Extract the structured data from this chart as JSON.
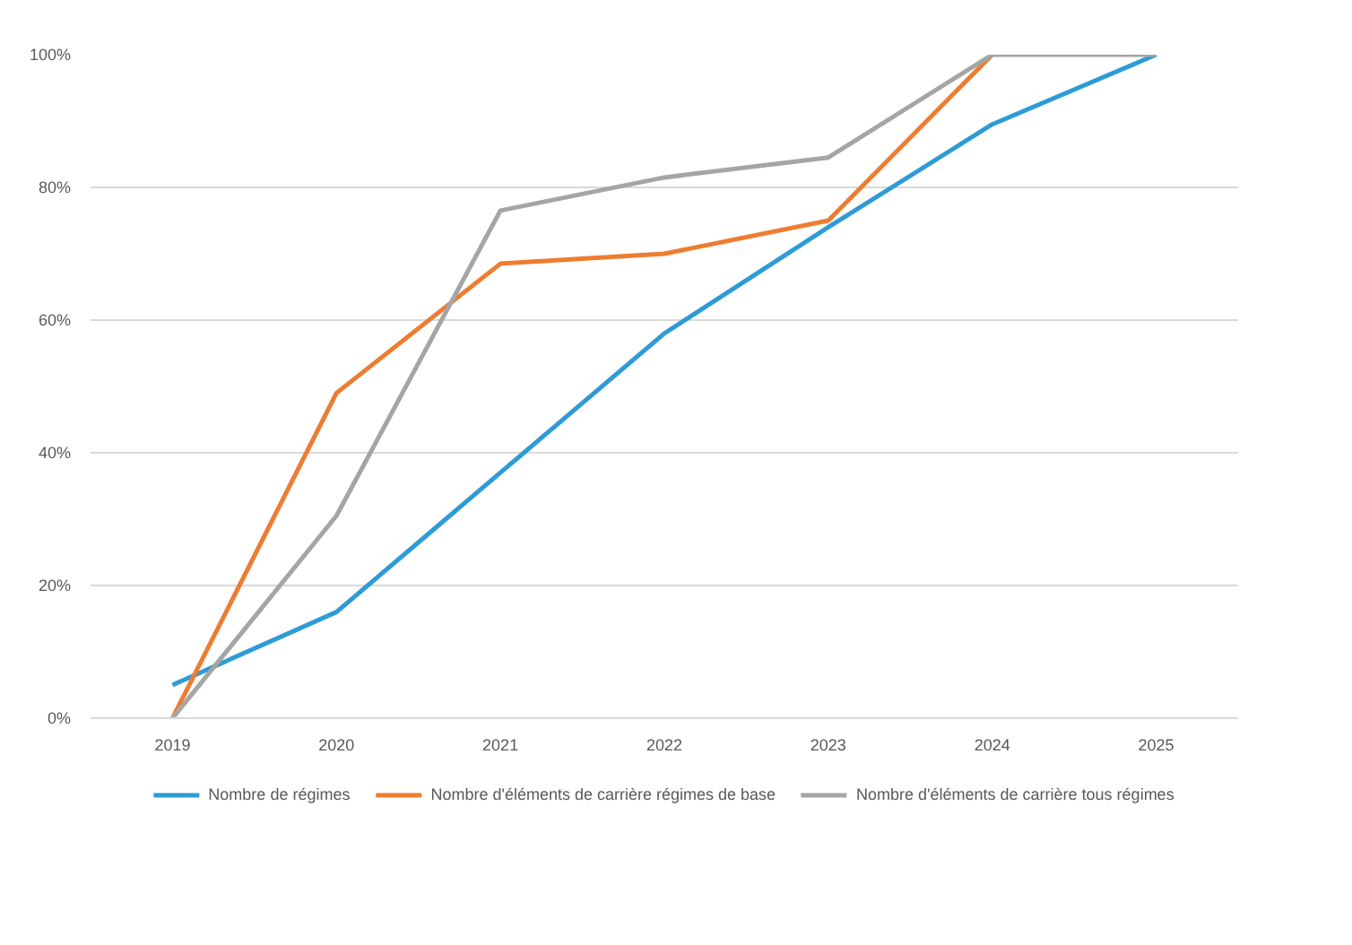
{
  "chart_data": {
    "type": "line",
    "categories": [
      "2019",
      "2020",
      "2021",
      "2022",
      "2023",
      "2024",
      "2025"
    ],
    "series": [
      {
        "name": "Nombre de régimes",
        "color": "#2e9bd6",
        "values": [
          5,
          16,
          37,
          58,
          74,
          89.5,
          100
        ]
      },
      {
        "name": "Nombre d'éléments de carrière régimes de base",
        "color": "#ed7d31",
        "values": [
          0,
          49,
          68.5,
          70,
          75,
          100,
          null
        ]
      },
      {
        "name": "Nombre d'éléments de carrière tous régimes",
        "color": "#a5a5a5",
        "values": [
          0,
          30.5,
          76.5,
          81.5,
          84.5,
          100,
          100
        ]
      }
    ],
    "ylim": [
      0,
      100
    ],
    "yticks": [
      {
        "value": 0,
        "label": "0%"
      },
      {
        "value": 20,
        "label": "20%"
      },
      {
        "value": 40,
        "label": "40%"
      },
      {
        "value": 60,
        "label": "60%"
      },
      {
        "value": 80,
        "label": "80%"
      },
      {
        "value": 100,
        "label": "100%"
      }
    ],
    "grid": "y",
    "legend": "bottom",
    "line_style": "solid",
    "marker": "none"
  }
}
